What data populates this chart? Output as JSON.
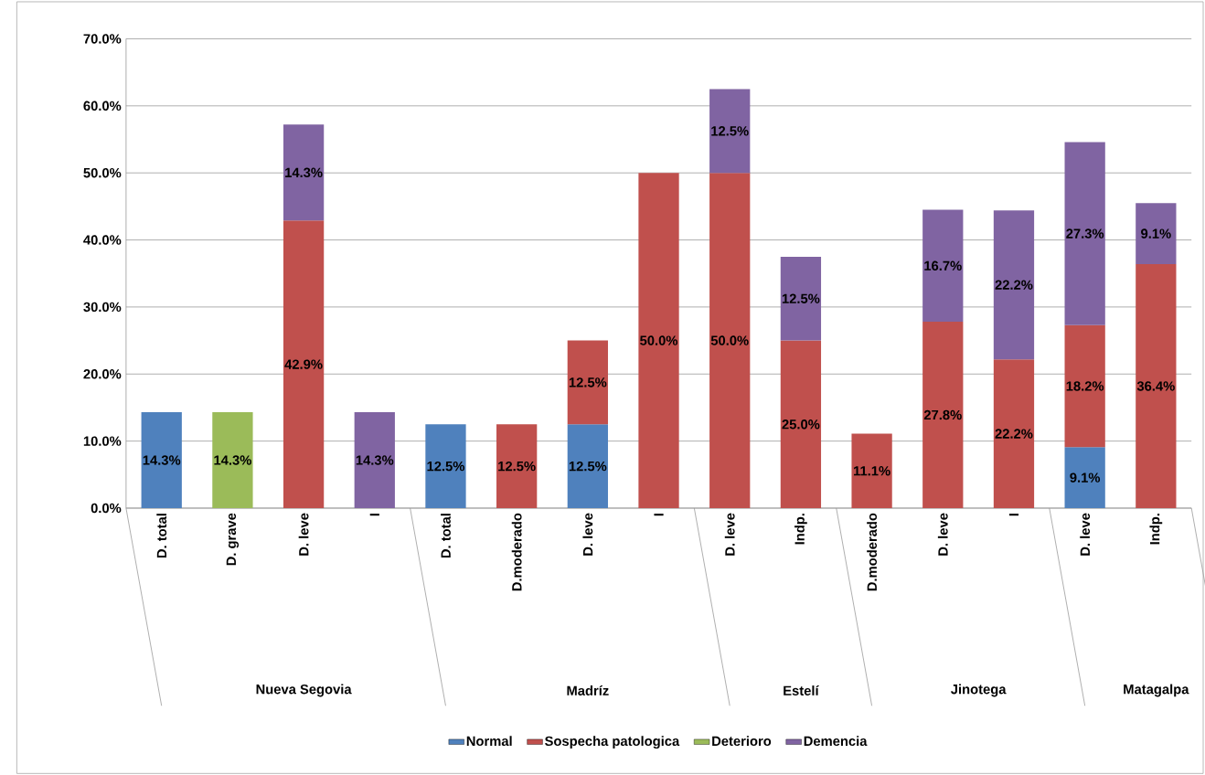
{
  "chart_data": {
    "type": "bar",
    "stacked": true,
    "categories": [
      "D. total",
      "D. grave",
      "D. leve",
      "I",
      "D. total",
      "D.moderado",
      "D. leve",
      "I",
      "D. leve",
      "Indp.",
      "D.moderado",
      "D. leve",
      "I",
      "D. leve",
      "Indp."
    ],
    "annotations": [
      "Nueva Segovia",
      "Madríz",
      "Estelí",
      "Jinotega",
      "Matagalpa"
    ],
    "series": [
      {
        "name": "Normal",
        "color": "#4f81bd",
        "values": [
          14.3,
          null,
          null,
          null,
          12.5,
          null,
          12.5,
          null,
          null,
          null,
          null,
          null,
          null,
          9.1,
          null
        ],
        "value_labels": [
          "14.3%",
          null,
          null,
          null,
          "12.5%",
          null,
          "12.5%",
          null,
          null,
          null,
          null,
          null,
          null,
          "9.1%",
          null
        ]
      },
      {
        "name": "Sospecha patologica",
        "color": "#c0504d",
        "values": [
          null,
          null,
          42.9,
          null,
          null,
          12.5,
          12.5,
          50.0,
          50.0,
          25.0,
          11.1,
          27.8,
          22.2,
          18.2,
          36.4
        ],
        "value_labels": [
          null,
          null,
          "42.9%",
          null,
          null,
          "12.5%",
          "12.5%",
          "50.0%",
          "50.0%",
          "25.0%",
          "11.1%",
          "27.8%",
          "22.2%",
          "18.2%",
          "36.4%"
        ]
      },
      {
        "name": "Deterioro",
        "color": "#9bbb59",
        "values": [
          null,
          14.3,
          null,
          null,
          null,
          null,
          null,
          null,
          null,
          null,
          null,
          null,
          null,
          null,
          null
        ],
        "value_labels": [
          null,
          "14.3%",
          null,
          null,
          null,
          null,
          null,
          null,
          null,
          null,
          null,
          null,
          null,
          null,
          null
        ]
      },
      {
        "name": "Demencia",
        "color": "#8064a2",
        "values": [
          null,
          null,
          14.3,
          14.3,
          null,
          null,
          null,
          null,
          12.5,
          12.5,
          null,
          16.7,
          22.2,
          27.3,
          9.1
        ],
        "value_labels": [
          null,
          null,
          "14.3%",
          "14.3%",
          null,
          null,
          null,
          null,
          "12.5%",
          "12.5%",
          null,
          "16.7%",
          "22.2%",
          "27.3%",
          "9.1%"
        ]
      }
    ],
    "ylim": [
      0,
      70
    ],
    "yticks": [
      {
        "value": 0,
        "label": "0.0%"
      },
      {
        "value": 10,
        "label": "10.0%"
      },
      {
        "value": 20,
        "label": "20.0%"
      },
      {
        "value": 30,
        "label": "30.0%"
      },
      {
        "value": 40,
        "label": "40.0%"
      },
      {
        "value": 50,
        "label": "50.0%"
      },
      {
        "value": 60,
        "label": "60.0%"
      },
      {
        "value": 70,
        "label": "70.0%"
      }
    ],
    "grid": "y",
    "legend": "bottom"
  }
}
